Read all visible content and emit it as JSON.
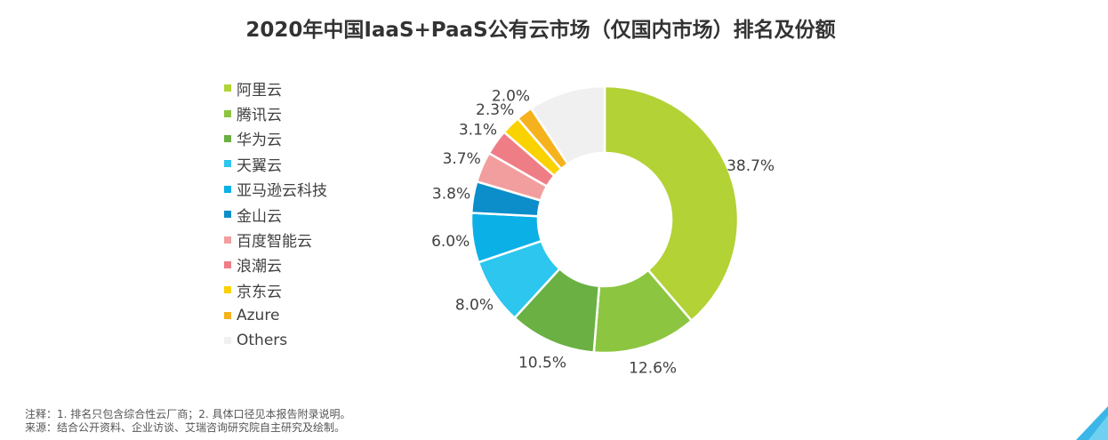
{
  "chart_data": {
    "type": "pie",
    "title": "2020年中国IaaS+PaaS公有云市场（仅国内市场）排名及份额",
    "legend_position": "left",
    "slices": [
      {
        "name": "阿里云",
        "value": 38.7,
        "label": "38.7%",
        "color": "#b2d235"
      },
      {
        "name": "腾讯云",
        "value": 12.6,
        "label": "12.6%",
        "color": "#8cc540"
      },
      {
        "name": "华为云",
        "value": 10.5,
        "label": "10.5%",
        "color": "#6ab043"
      },
      {
        "name": "天翼云",
        "value": 8.0,
        "label": "8.0%",
        "color": "#2cc6ee"
      },
      {
        "name": "亚马逊云科技",
        "value": 6.0,
        "label": "6.0%",
        "color": "#0bb0e6"
      },
      {
        "name": "金山云",
        "value": 3.8,
        "label": "3.8%",
        "color": "#0b8ec9"
      },
      {
        "name": "百度智能云",
        "value": 3.7,
        "label": "3.7%",
        "color": "#f29e9e"
      },
      {
        "name": "浪潮云",
        "value": 3.1,
        "label": "3.1%",
        "color": "#ef7d86"
      },
      {
        "name": "京东云",
        "value": 2.3,
        "label": "2.3%",
        "color": "#fad200"
      },
      {
        "name": "Azure",
        "value": 2.0,
        "label": "2.0%",
        "color": "#f6b21d"
      },
      {
        "name": "Others",
        "value": 9.3,
        "label": "",
        "color": "#f0f0f0"
      }
    ]
  },
  "notes": {
    "line1": "注释：1. 排名只包含综合性云厂商；2. 具体口径见本报告附录说明。",
    "line2": "来源：结合公开资料、企业访谈、艾瑞咨询研究院自主研究及绘制。"
  }
}
